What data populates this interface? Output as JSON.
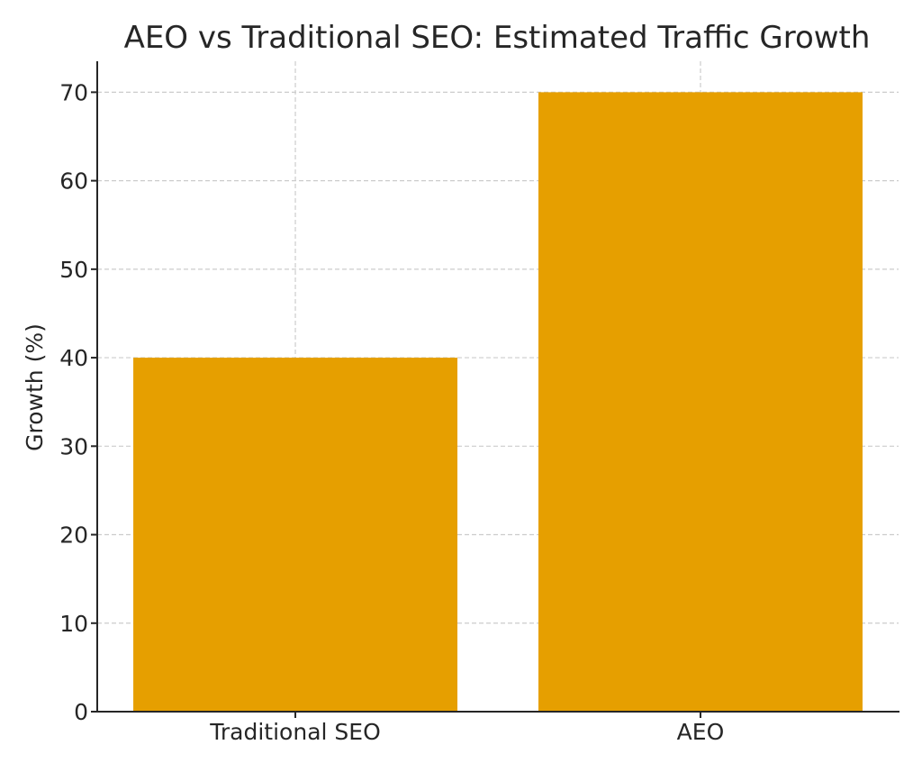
{
  "chart_data": {
    "type": "bar",
    "title": "AEO vs Traditional SEO: Estimated Traffic Growth",
    "xlabel": "",
    "ylabel": "Growth (%)",
    "categories": [
      "Traditional SEO",
      "AEO"
    ],
    "values": [
      40,
      70
    ],
    "ylim": [
      0,
      73.5
    ],
    "yticks": [
      0,
      10,
      20,
      30,
      40,
      50,
      60,
      70
    ],
    "grid": true,
    "bar_color": "#E69F00"
  }
}
